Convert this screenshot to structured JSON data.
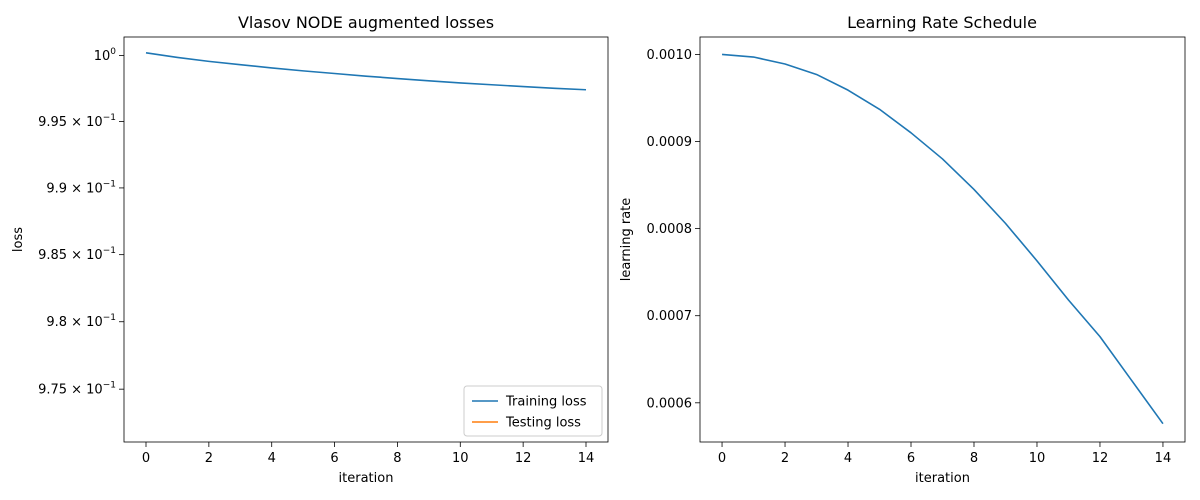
{
  "chart_data": [
    {
      "type": "line",
      "title": "Vlasov NODE augmented losses",
      "xlabel": "iteration",
      "ylabel": "loss",
      "yscale": "log",
      "xlim": [
        -0.7,
        14.7
      ],
      "ylim": [
        0.9711,
        1.0014
      ],
      "xticks": [
        0,
        2,
        4,
        6,
        8,
        10,
        12,
        14
      ],
      "yticks": [
        {
          "value": 1.0,
          "label": "10^0"
        },
        {
          "value": 0.995,
          "label": "9.95 × 10^-1"
        },
        {
          "value": 0.99,
          "label": "9.9 × 10^-1"
        },
        {
          "value": 0.985,
          "label": "9.85 × 10^-1"
        },
        {
          "value": 0.98,
          "label": "9.8 × 10^-1"
        },
        {
          "value": 0.975,
          "label": "9.75 × 10^-1"
        }
      ],
      "legend_position": "lower-right",
      "series": [
        {
          "name": "Training loss",
          "color": "#1f77b4",
          "x": [
            0,
            1,
            2,
            3,
            4,
            5,
            6,
            7,
            8,
            9,
            10,
            11,
            12,
            13,
            14
          ],
          "values": [
            1.0002,
            0.99985,
            0.99955,
            0.9993,
            0.99905,
            0.99883,
            0.99863,
            0.99843,
            0.99825,
            0.99808,
            0.99792,
            0.99778,
            0.99764,
            0.99751,
            0.9974
          ]
        },
        {
          "name": "Testing loss",
          "color": "#ff7f0e",
          "x": [],
          "values": []
        }
      ]
    },
    {
      "type": "line",
      "title": "Learning Rate Schedule",
      "xlabel": "iteration",
      "ylabel": "learning rate",
      "xlim": [
        -0.7,
        14.7
      ],
      "ylim": [
        0.000555,
        0.00102
      ],
      "xticks": [
        0,
        2,
        4,
        6,
        8,
        10,
        12,
        14
      ],
      "yticks": [
        {
          "value": 0.0006,
          "label": "0.0006"
        },
        {
          "value": 0.0007,
          "label": "0.0007"
        },
        {
          "value": 0.0008,
          "label": "0.0008"
        },
        {
          "value": 0.0009,
          "label": "0.0009"
        },
        {
          "value": 0.001,
          "label": "0.0010"
        }
      ],
      "series": [
        {
          "name": "",
          "color": "#1f77b4",
          "x": [
            0,
            1,
            2,
            3,
            4,
            5,
            6,
            7,
            8,
            9,
            10,
            11,
            12,
            13,
            14
          ],
          "values": [
            0.001,
            0.000997,
            0.000989,
            0.000977,
            0.000959,
            0.000937,
            0.00091,
            0.00088,
            0.000845,
            0.000806,
            0.000763,
            0.000718,
            0.000676,
            0.000626,
            0.000576
          ]
        }
      ]
    }
  ]
}
